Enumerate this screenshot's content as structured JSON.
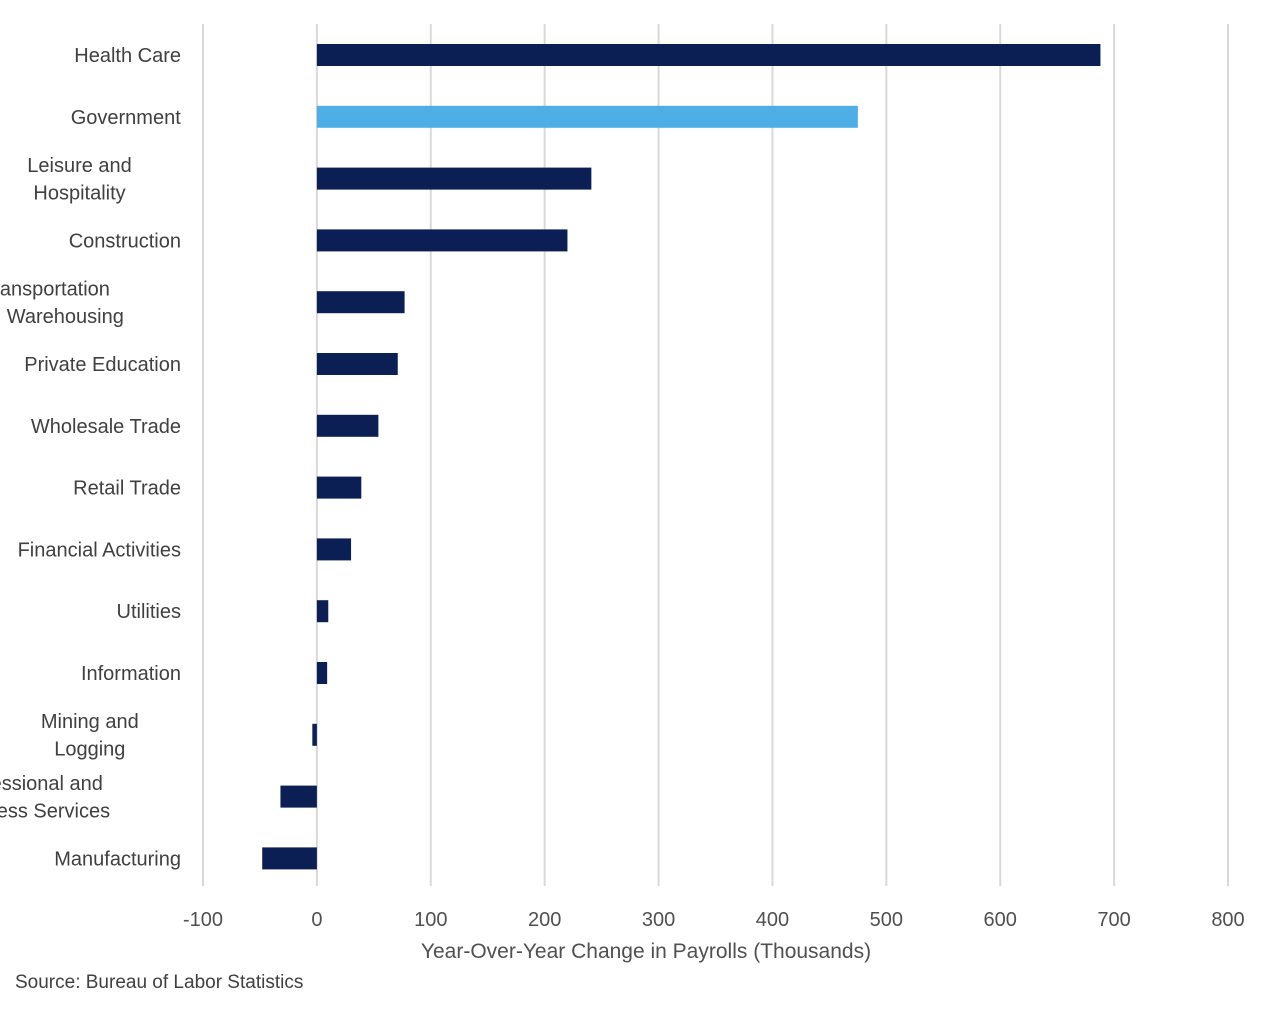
{
  "chart_data": {
    "type": "bar",
    "orientation": "horizontal",
    "categories": [
      "Health Care",
      "Government",
      "Leisure and Hospitality",
      "Construction",
      "Transportation and Warehousing",
      "Private Education",
      "Wholesale Trade",
      "Retail Trade",
      "Financial Activities",
      "Utilities",
      "Information",
      "Mining and Logging",
      "Professional and Business Services",
      "Manufacturing"
    ],
    "category_label_lines": [
      [
        "Health Care"
      ],
      [
        "Government"
      ],
      [
        "Leisure and",
        "Hospitality"
      ],
      [
        "Construction"
      ],
      [
        "Transportation",
        "and Warehousing"
      ],
      [
        "Private Education"
      ],
      [
        "Wholesale Trade"
      ],
      [
        "Retail Trade"
      ],
      [
        "Financial Activities"
      ],
      [
        "Utilities"
      ],
      [
        "Information"
      ],
      [
        "Mining and",
        "Logging"
      ],
      [
        "Professional and",
        "Business Services"
      ],
      [
        "Manufacturing"
      ]
    ],
    "values": [
      688,
      475,
      241,
      220,
      77,
      71,
      54,
      39,
      30,
      10,
      9,
      -4,
      -32,
      -48
    ],
    "bar_colors": [
      "#0b1f55",
      "#4faee6",
      "#0b1f55",
      "#0b1f55",
      "#0b1f55",
      "#0b1f55",
      "#0b1f55",
      "#0b1f55",
      "#0b1f55",
      "#0b1f55",
      "#0b1f55",
      "#0b1f55",
      "#0b1f55",
      "#0b1f55"
    ],
    "xlabel": "Year-Over-Year  Change in Payrolls (Thousands)",
    "ylabel": "",
    "title": "",
    "xlim": [
      -100,
      800
    ],
    "xticks": [
      -100,
      0,
      100,
      200,
      300,
      400,
      500,
      600,
      700,
      800
    ],
    "xtick_labels": [
      "-100",
      "0",
      "100",
      "200",
      "300",
      "400",
      "500",
      "600",
      "700",
      "800"
    ],
    "grid": "vertical",
    "legend": "none"
  },
  "colors": {
    "primary_bar": "#0b1f55",
    "highlight_bar": "#4faee6",
    "gridline": "#d9d9d9",
    "text": "#404040"
  },
  "source_note": "Source: Bureau of Labor Statistics"
}
